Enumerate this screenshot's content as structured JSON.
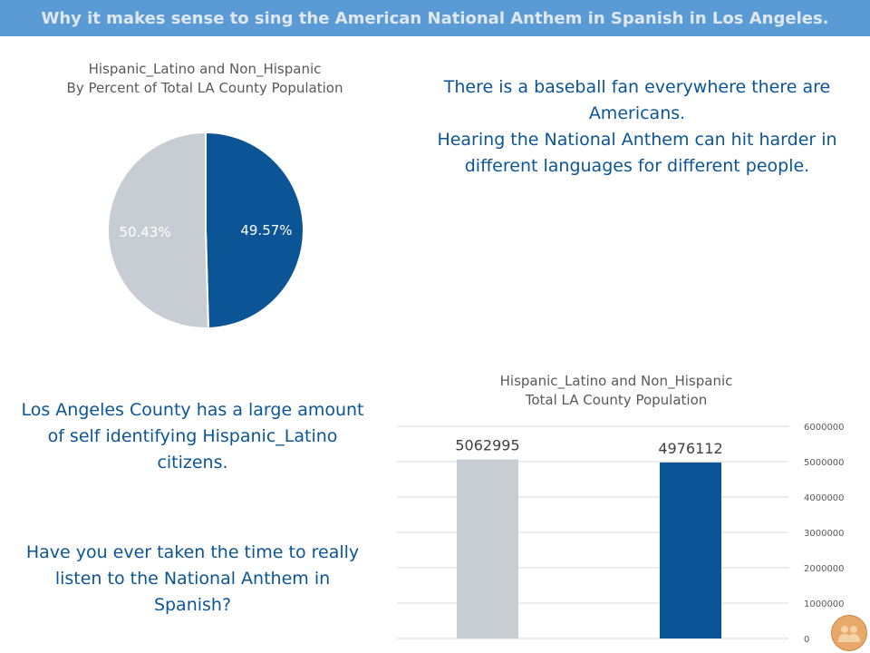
{
  "header": {
    "title": "Why it makes sense to sing the American National Anthem in Spanish in Los Angeles."
  },
  "pie_title": {
    "line1": "Hispanic_Latino and Non_Hispanic",
    "line2": "By Percent of Total LA County Population"
  },
  "bar_title": {
    "line1": "Hispanic_Latino and Non_Hispanic",
    "line2": "Total LA County Population"
  },
  "text_top": {
    "line1": "There is a baseball fan everywhere there are",
    "line2": "Americans.",
    "line3": "Hearing the National Anthem can hit harder in",
    "line4": "different languages for different people."
  },
  "text_left1": {
    "line1": "Los Angeles County has a large amount",
    "line2": "of self identifying Hispanic_Latino",
    "line3": "citizens."
  },
  "text_left2": {
    "line1": "Have you ever taken the time to really",
    "line2": "listen to the National Anthem in",
    "line3": "Spanish?"
  },
  "colors": {
    "header": "#5b9bd5",
    "blue": "#0b5496",
    "gray": "#c8cdd3",
    "text_blue": "#0b5496"
  },
  "corner_icon": "people-icon",
  "chart_data": [
    {
      "type": "pie",
      "title": "Hispanic_Latino and Non_Hispanic By Percent of Total LA County Population",
      "slices": [
        {
          "value": 49.57,
          "label": "49.57%",
          "color": "#0b5496"
        },
        {
          "value": 50.43,
          "label": "50.43%",
          "color": "#c8cdd3"
        }
      ]
    },
    {
      "type": "bar",
      "title": "Hispanic_Latino and Non_Hispanic Total LA County Population",
      "values": [
        5062995,
        4976112
      ],
      "data_labels": [
        "5062995",
        "4976112"
      ],
      "colors": [
        "#c8cdd3",
        "#0b5496"
      ],
      "ylim": [
        0,
        6000000
      ],
      "yticks": [
        "0",
        "1000000",
        "2000000",
        "3000000",
        "4000000",
        "5000000",
        "6000000"
      ],
      "grid": true
    }
  ]
}
